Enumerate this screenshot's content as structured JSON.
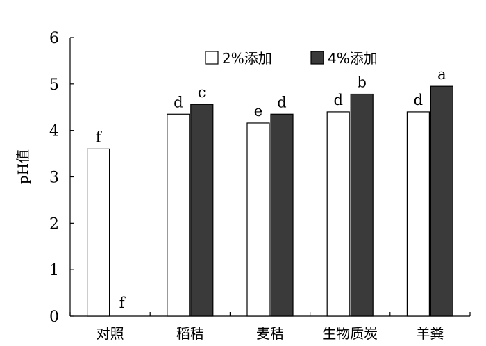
{
  "chart_data": {
    "type": "bar",
    "ylabel": "pH值",
    "xlabel": "",
    "ylim": [
      0,
      6
    ],
    "yticks": [
      0,
      1,
      2,
      3,
      4,
      5,
      6
    ],
    "categories": [
      "对照",
      "稻秸",
      "麦秸",
      "生物质炭",
      "羊粪"
    ],
    "series": [
      {
        "name": "2%添加",
        "color": "#ffffff",
        "values": [
          3.6,
          4.35,
          4.16,
          4.4,
          4.4
        ],
        "significance": [
          "f",
          "d",
          "e",
          "d",
          "d"
        ]
      },
      {
        "name": "4%添加",
        "color": "#3a3a3a",
        "values": [
          0,
          4.56,
          4.35,
          4.78,
          4.95
        ],
        "significance": [
          "f",
          "c",
          "d",
          "b",
          "a"
        ]
      }
    ],
    "legend_position": "top-right",
    "grid": false
  }
}
